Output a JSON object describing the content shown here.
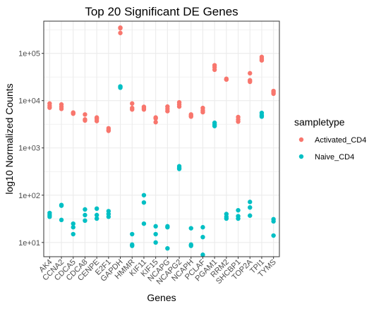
{
  "chart_data": {
    "type": "scatter",
    "title": "Top 20 Significant DE Genes",
    "xlabel": "Genes",
    "ylabel": "log10 Normalized Counts",
    "y_scale": "log10",
    "ylim": [
      5,
      480000
    ],
    "yticks": [
      10,
      100,
      1000,
      10000,
      100000
    ],
    "ytick_labels": [
      "1e+01",
      "1e+02",
      "1e+03",
      "1e+04",
      "1e+05"
    ],
    "grid": true,
    "legend_position": "right",
    "legend_title": "sampletype",
    "categories": [
      "AK4",
      "CCNA2",
      "CDCA5",
      "CDCA8",
      "CENPE",
      "E2F1",
      "GAPDH",
      "HMMR",
      "KIF11",
      "KIF15",
      "NCAPG",
      "NCAPG2",
      "NCAPH",
      "PCLAF",
      "PGAM1",
      "RRM2",
      "SHCBP1",
      "TOP2A",
      "TPI1",
      "TYMS"
    ],
    "series": [
      {
        "name": "Activated_CD4",
        "color": "#F8766D",
        "values": [
          [
            8700,
            7800,
            7100
          ],
          [
            8300,
            7400,
            6700
          ],
          [
            5600,
            5500,
            5300
          ],
          [
            5100,
            4000,
            3800
          ],
          [
            4400,
            4100,
            3700
          ],
          [
            2600,
            2400,
            2300
          ],
          [
            350000,
            340000,
            270000
          ],
          [
            8700,
            7000,
            6500
          ],
          [
            7400,
            6900,
            6500
          ],
          [
            4400,
            4200,
            3500
          ],
          [
            7500,
            6700,
            6000
          ],
          [
            9200,
            8300,
            7500
          ],
          [
            5100,
            4800,
            4600
          ],
          [
            7000,
            6200,
            5700
          ],
          [
            56000,
            51000,
            45000
          ],
          [
            29000,
            28000,
            28000
          ],
          [
            4500,
            4000,
            3600
          ],
          [
            38000,
            27000,
            25000
          ],
          [
            84000,
            76000,
            71000
          ],
          [
            16000,
            15000,
            14000
          ]
        ]
      },
      {
        "name": "Naive_CD4",
        "color": "#00BFC4",
        "values": [
          [
            42,
            38,
            35
          ],
          [
            62,
            60,
            30
          ],
          [
            25,
            21,
            15
          ],
          [
            50,
            38,
            29
          ],
          [
            52,
            38,
            32
          ],
          [
            46,
            40,
            35
          ],
          [
            20000,
            19500,
            18800
          ],
          [
            15,
            9,
            8.5
          ],
          [
            100,
            70,
            25
          ],
          [
            22,
            15,
            10
          ],
          [
            22,
            21,
            7.5
          ],
          [
            410,
            380,
            360
          ],
          [
            20,
            9,
            8.5
          ],
          [
            21,
            13,
            5.5
          ],
          [
            3400,
            3100,
            2900
          ],
          [
            40,
            35,
            32
          ],
          [
            48,
            36,
            32
          ],
          [
            72,
            55,
            37
          ],
          [
            5500,
            4900,
            4600
          ],
          [
            31,
            28,
            14
          ]
        ]
      }
    ]
  }
}
